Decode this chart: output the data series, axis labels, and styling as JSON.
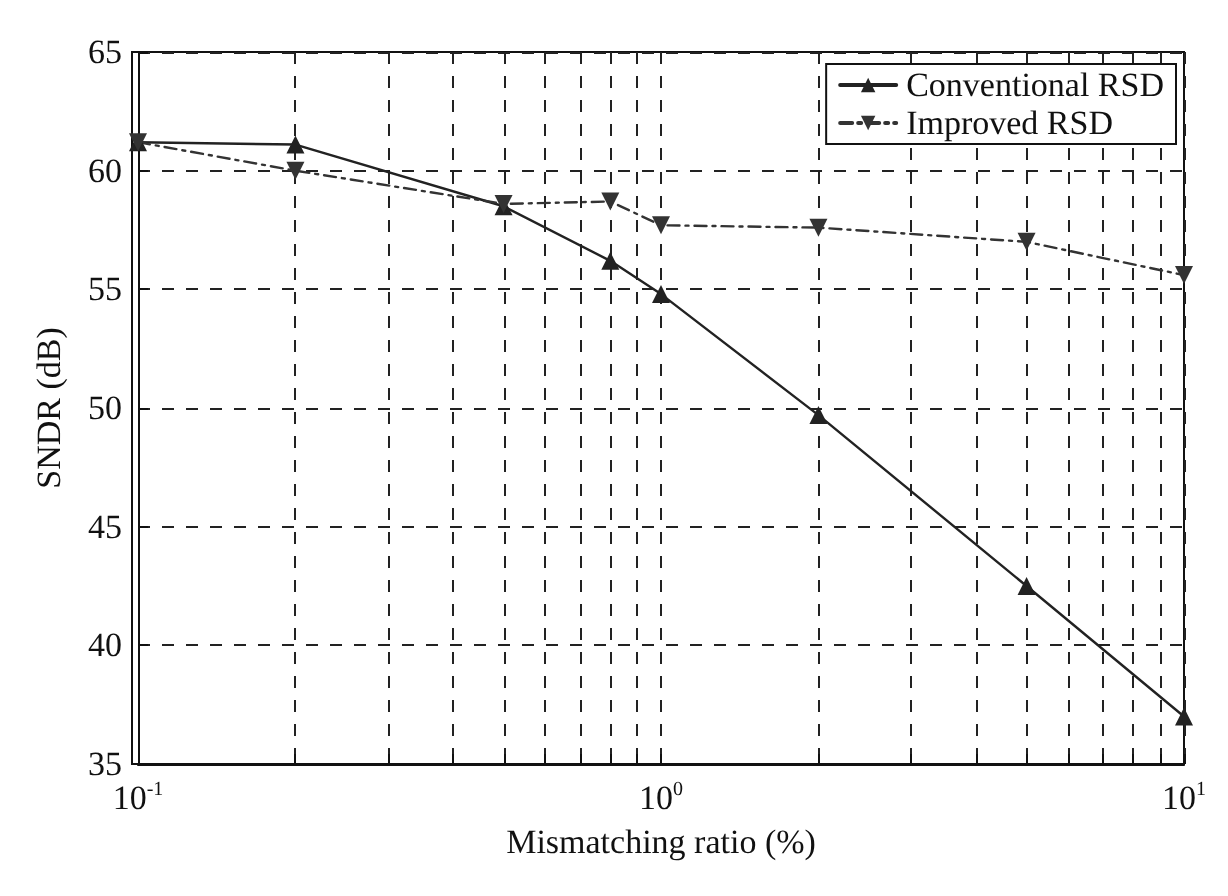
{
  "chart_data": {
    "type": "line",
    "xlabel": "Mismatching ratio (%)",
    "ylabel": "SNDR (dB)",
    "x": [
      0.1,
      0.2,
      0.5,
      0.8,
      1,
      2,
      5,
      10
    ],
    "series": [
      {
        "name": "Conventional RSD",
        "color": "#222222",
        "marker": "triangle",
        "line_style": "solid",
        "values": [
          61.2,
          61.1,
          58.5,
          56.2,
          54.8,
          49.7,
          42.5,
          37
        ]
      },
      {
        "name": "Improved RSD",
        "color": "#333333",
        "marker": "triangle_down",
        "line_style": "dashed",
        "values": [
          61.2,
          60.0,
          58.6,
          58.7,
          57.7,
          57.6,
          57.0,
          55.6
        ]
      }
    ],
    "log": "x",
    "xlim": [
      0.1,
      10
    ],
    "xticks": [
      {
        "value": 0.1,
        "label": "10$^{-1}$"
      },
      {
        "value": 0.2,
        "label": null
      },
      {
        "value": 0.3,
        "label": null
      },
      {
        "value": 0.4,
        "label": null
      },
      {
        "value": 0.5,
        "label": null
      },
      {
        "value": 0.6,
        "label": null
      },
      {
        "value": 0.7,
        "label": null
      },
      {
        "value": 0.8,
        "label": null
      },
      {
        "value": 0.9,
        "label": null
      },
      {
        "value": 1,
        "label": "10$^{0}$"
      },
      {
        "value": 2,
        "label": null
      },
      {
        "value": 3,
        "label": null
      },
      {
        "value": 4,
        "label": null
      },
      {
        "value": 5,
        "label": null
      },
      {
        "value": 6,
        "label": null
      },
      {
        "value": 7,
        "label": null
      },
      {
        "value": 8,
        "label": null
      },
      {
        "value": 9,
        "label": null
      },
      {
        "value": 10,
        "label": "10$^{1}$"
      }
    ],
    "ylim": [
      35,
      65
    ],
    "yticks": [
      35,
      40,
      45,
      50,
      55,
      60,
      65
    ],
    "grid": true,
    "legend": "top right"
  }
}
